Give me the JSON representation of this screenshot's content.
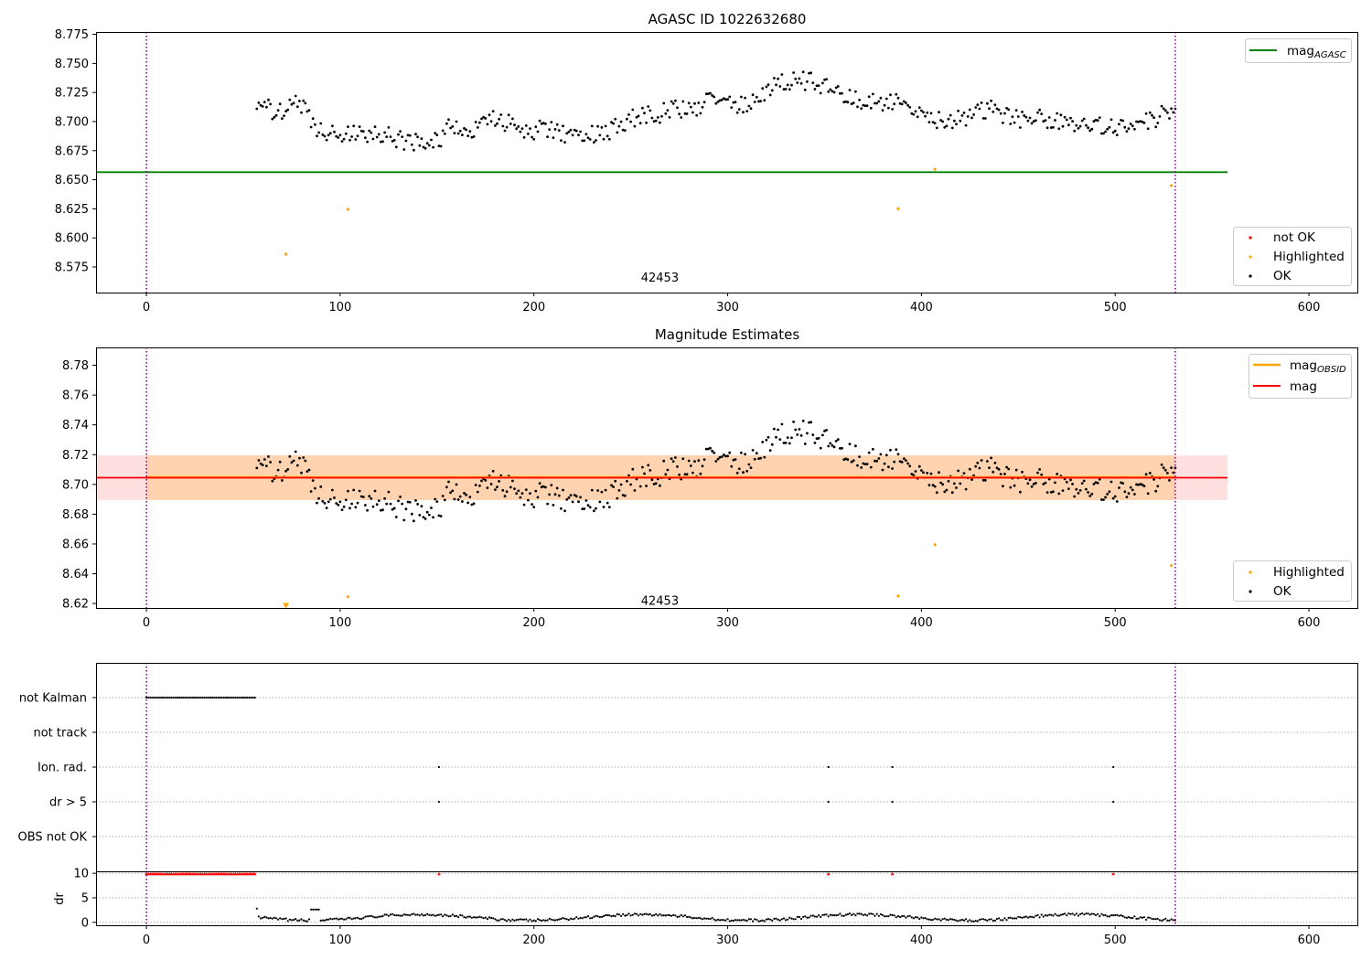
{
  "colors": {
    "ok": "#000000",
    "highlighted": "#ffa500",
    "not_ok": "#ff0000",
    "mag_agasc": "#008000",
    "mag_obsid": "#ffa500",
    "mag": "#ff0000",
    "obs_boundary": "#800080",
    "mag_obsid_band": "#ffa500",
    "mag_band": "#ff0000"
  },
  "chart_data": [
    {
      "id": "panel1",
      "type": "scatter",
      "title": "AGASC ID 1022632680",
      "xlabel": "",
      "ylabel": "",
      "xlim": [
        -26,
        625
      ],
      "ylim": [
        8.553,
        8.777
      ],
      "xticks": [
        0,
        100,
        200,
        300,
        400,
        500,
        600
      ],
      "yticks": [
        8.575,
        8.6,
        8.625,
        8.65,
        8.675,
        8.7,
        8.725,
        8.75,
        8.775
      ],
      "ytick_labels": [
        "8.575",
        "8.600",
        "8.625",
        "8.650",
        "8.675",
        "8.700",
        "8.725",
        "8.750",
        "8.775"
      ],
      "obsid_boundaries": [
        0,
        531
      ],
      "obsid_label": {
        "text": "42453",
        "x": 265,
        "y": 8.5655
      },
      "horizontal_lines": [
        {
          "name": "mag_AGASC",
          "y": 8.6565,
          "x0": -26,
          "x1": 558,
          "color_key": "mag_agasc"
        }
      ],
      "legend_lines": [
        {
          "label": "mag",
          "subscript": "AGASC",
          "color_key": "mag_agasc"
        }
      ],
      "legend_points": [
        {
          "label": "not OK",
          "color_key": "not_ok"
        },
        {
          "label": "Highlighted",
          "color_key": "highlighted"
        },
        {
          "label": "OK",
          "color_key": "ok"
        }
      ],
      "series": [
        {
          "name": "Highlighted",
          "color_key": "highlighted",
          "x": [
            72,
            104,
            388,
            407,
            529
          ],
          "y": [
            8.586,
            8.6245,
            8.625,
            8.659,
            8.645
          ]
        },
        {
          "name": "OK",
          "color_key": "ok",
          "generated": true,
          "x_range": [
            57,
            531
          ],
          "seed": 1022632680
        }
      ]
    },
    {
      "id": "panel2",
      "type": "scatter",
      "title": "Magnitude Estimates",
      "xlabel": "",
      "ylabel": "",
      "xlim": [
        -26,
        625
      ],
      "ylim": [
        8.617,
        8.792
      ],
      "xticks": [
        0,
        100,
        200,
        300,
        400,
        500,
        600
      ],
      "yticks": [
        8.62,
        8.64,
        8.66,
        8.68,
        8.7,
        8.72,
        8.74,
        8.76,
        8.78
      ],
      "ytick_labels": [
        "8.62",
        "8.64",
        "8.66",
        "8.68",
        "8.70",
        "8.72",
        "8.74",
        "8.76",
        "8.78"
      ],
      "obsid_boundaries": [
        0,
        531
      ],
      "obsid_label": {
        "text": "42453",
        "x": 265,
        "y": 8.6215
      },
      "bands": [
        {
          "name": "mag band",
          "y0": 8.6895,
          "y1": 8.7195,
          "x0": -26,
          "x1": 558,
          "color_key": "mag_band",
          "opacity": 0.12
        },
        {
          "name": "mag_OBSID band",
          "y0": 8.6895,
          "y1": 8.7195,
          "x0": 0,
          "x1": 531,
          "color_key": "mag_obsid_band",
          "opacity": 0.22
        }
      ],
      "horizontal_lines": [
        {
          "name": "mag_OBSID",
          "y": 8.7048,
          "x0": 0,
          "x1": 531,
          "color_key": "mag_obsid"
        },
        {
          "name": "mag",
          "y": 8.7045,
          "x0": -26,
          "x1": 558,
          "color_key": "mag"
        }
      ],
      "legend_lines": [
        {
          "label": "mag",
          "subscript": "OBSID",
          "color_key": "mag_obsid"
        },
        {
          "label": "mag",
          "subscript": "",
          "color_key": "mag"
        }
      ],
      "legend_points": [
        {
          "label": "Highlighted",
          "color_key": "highlighted"
        },
        {
          "label": "OK",
          "color_key": "ok"
        }
      ],
      "series": [
        {
          "name": "Highlighted",
          "color_key": "highlighted",
          "x": [
            104,
            388,
            407,
            529
          ],
          "y": [
            8.6245,
            8.625,
            8.6595,
            8.6455
          ]
        },
        {
          "name": "Highlighted (below range)",
          "color_key": "highlighted",
          "marker": "triangle-down",
          "x": [
            72
          ],
          "y": [
            8.6185
          ]
        },
        {
          "name": "OK",
          "color_key": "ok",
          "generated": true,
          "x_range": [
            57,
            531
          ],
          "seed": 1022632680
        }
      ]
    },
    {
      "id": "panel3",
      "type": "scatter",
      "title": "",
      "xlabel": "",
      "ylabel": "",
      "xlim": [
        -26,
        625
      ],
      "categories": [
        "not Kalman",
        "not track",
        "Ion. rad.",
        "dr > 5",
        "OBS not OK"
      ],
      "obsid_boundaries": [
        0,
        531
      ],
      "flag_series": [
        {
          "category": "not Kalman",
          "x_range": [
            0,
            56
          ]
        },
        {
          "category": "not track",
          "x": []
        },
        {
          "category": "Ion. rad.",
          "x": [
            151,
            352,
            385,
            499
          ]
        },
        {
          "category": "dr > 5",
          "x": [
            151,
            352,
            385,
            499
          ]
        },
        {
          "category": "OBS not OK",
          "x": []
        }
      ]
    },
    {
      "id": "panel4",
      "type": "scatter",
      "title": "",
      "xlabel": "",
      "ylabel": "dr",
      "xlim": [
        -26,
        625
      ],
      "ylim": [
        -0.6,
        10.4
      ],
      "xticks": [
        0,
        100,
        200,
        300,
        400,
        500,
        600
      ],
      "yticks": [
        0,
        5,
        10
      ],
      "ytick_labels": [
        "0",
        "5",
        "10"
      ],
      "obsid_boundaries": [
        0,
        531
      ],
      "series": [
        {
          "name": "dr > 10 (clipped)",
          "color_key": "not_ok",
          "marker": "triangle-up",
          "x_range": [
            0,
            56
          ],
          "extra_x": [
            151,
            352,
            385,
            499
          ],
          "y": 9.9
        },
        {
          "name": "dr",
          "color_key": "ok",
          "generated": true,
          "x_range": [
            57,
            531
          ]
        }
      ]
    }
  ]
}
